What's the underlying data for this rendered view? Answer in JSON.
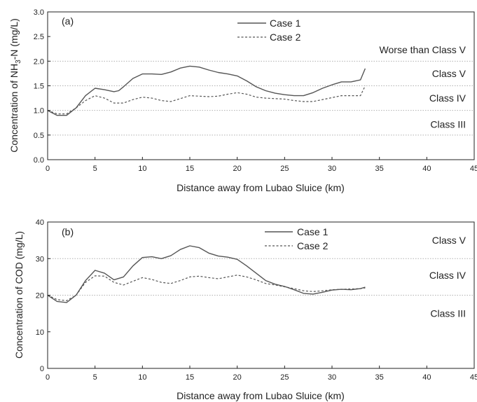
{
  "chart_data": [
    {
      "type": "line",
      "panel_label": "(a)",
      "xlabel": "Distance away from Lubao Sluice (km)",
      "ylabel": "Concentration of NH",
      "ylabel_sub": "3",
      "ylabel_rest": "-N (mg/L)",
      "xlim": [
        0,
        45
      ],
      "ylim": [
        0,
        3.0
      ],
      "xticks": [
        "0",
        "5",
        "10",
        "15",
        "20",
        "25",
        "30",
        "35",
        "40",
        "45"
      ],
      "yticks": [
        "0.0",
        "0.5",
        "1.0",
        "1.5",
        "2.0",
        "2.5",
        "3.0"
      ],
      "reference_lines": [
        0.5,
        1.0,
        1.5,
        2.0
      ],
      "class_labels": [
        {
          "text": "Worse than Class V",
          "y": 2.23
        },
        {
          "text": "Class V",
          "y": 1.75
        },
        {
          "text": "Class IV",
          "y": 1.25
        },
        {
          "text": "Class III",
          "y": 0.72
        }
      ],
      "series": [
        {
          "name": "Case 1",
          "style": "solid",
          "x": [
            0,
            1,
            2,
            3,
            4,
            5,
            6,
            7,
            7.5,
            8,
            9,
            10,
            11,
            12,
            13,
            14,
            15,
            16,
            17,
            18,
            19,
            20,
            21,
            22,
            23,
            24,
            25,
            26,
            27,
            28,
            29,
            30,
            31,
            32,
            33,
            33.5
          ],
          "values": [
            1.0,
            0.9,
            0.9,
            1.05,
            1.3,
            1.45,
            1.42,
            1.38,
            1.4,
            1.48,
            1.65,
            1.74,
            1.74,
            1.73,
            1.78,
            1.86,
            1.9,
            1.88,
            1.82,
            1.77,
            1.74,
            1.7,
            1.6,
            1.48,
            1.4,
            1.35,
            1.32,
            1.3,
            1.3,
            1.36,
            1.45,
            1.52,
            1.58,
            1.58,
            1.62,
            1.85
          ]
        },
        {
          "name": "Case 2",
          "style": "dashed",
          "x": [
            0,
            1,
            2,
            3,
            4,
            5,
            6,
            7,
            8,
            9,
            10,
            11,
            12,
            13,
            14,
            15,
            16,
            17,
            18,
            19,
            20,
            21,
            22,
            23,
            24,
            25,
            26,
            27,
            28,
            29,
            30,
            31,
            32,
            33,
            33.5
          ],
          "values": [
            1.0,
            0.93,
            0.93,
            1.05,
            1.2,
            1.3,
            1.25,
            1.15,
            1.15,
            1.22,
            1.27,
            1.25,
            1.2,
            1.18,
            1.24,
            1.3,
            1.29,
            1.28,
            1.29,
            1.33,
            1.36,
            1.33,
            1.27,
            1.25,
            1.24,
            1.23,
            1.2,
            1.18,
            1.18,
            1.22,
            1.26,
            1.3,
            1.3,
            1.3,
            1.5
          ]
        }
      ]
    },
    {
      "type": "line",
      "panel_label": "(b)",
      "xlabel": "Distance away from Lubao Sluice (km)",
      "ylabel": "Concentration of COD (mg/L)",
      "xlim": [
        0,
        45
      ],
      "ylim": [
        0,
        40
      ],
      "xticks": [
        "0",
        "5",
        "10",
        "15",
        "20",
        "25",
        "30",
        "35",
        "40",
        "45"
      ],
      "yticks": [
        "0",
        "10",
        "20",
        "30",
        "40"
      ],
      "reference_lines": [
        20,
        30
      ],
      "class_labels": [
        {
          "text": "Class V",
          "y": 35
        },
        {
          "text": "Class IV",
          "y": 25.5
        },
        {
          "text": "Class III",
          "y": 15
        }
      ],
      "series": [
        {
          "name": "Case 1",
          "style": "solid",
          "x": [
            0,
            1,
            2,
            3,
            4,
            5,
            6,
            7,
            8,
            9,
            10,
            11,
            12,
            13,
            14,
            15,
            16,
            17,
            18,
            19,
            20,
            21,
            22,
            23,
            24,
            25,
            26,
            27,
            28,
            29,
            30,
            31,
            32,
            33,
            33.5
          ],
          "values": [
            20,
            18.3,
            18,
            20,
            24,
            26.8,
            26,
            24.2,
            25,
            28,
            30.3,
            30.5,
            30,
            30.8,
            32.5,
            33.5,
            33,
            31.5,
            30.7,
            30.4,
            29.8,
            28,
            26,
            24,
            23,
            22.4,
            21.5,
            20.5,
            20.3,
            20.8,
            21.4,
            21.6,
            21.5,
            21.8,
            22.2
          ]
        },
        {
          "name": "Case 2",
          "style": "dashed",
          "x": [
            0,
            1,
            2,
            3,
            4,
            5,
            6,
            7,
            8,
            9,
            10,
            11,
            12,
            13,
            14,
            15,
            16,
            17,
            18,
            19,
            20,
            21,
            22,
            23,
            24,
            25,
            26,
            27,
            28,
            29,
            30,
            31,
            32,
            33,
            33.5
          ],
          "values": [
            20,
            18.8,
            18.5,
            20,
            23.5,
            25.3,
            25.2,
            23.5,
            22.8,
            23.8,
            24.8,
            24.3,
            23.5,
            23.2,
            24,
            25,
            25.2,
            24.8,
            24.5,
            25,
            25.5,
            25,
            24.2,
            23.2,
            22.8,
            22.3,
            21.8,
            21.2,
            21,
            21.2,
            21.5,
            21.6,
            21.7,
            21.8,
            22
          ]
        }
      ]
    }
  ]
}
